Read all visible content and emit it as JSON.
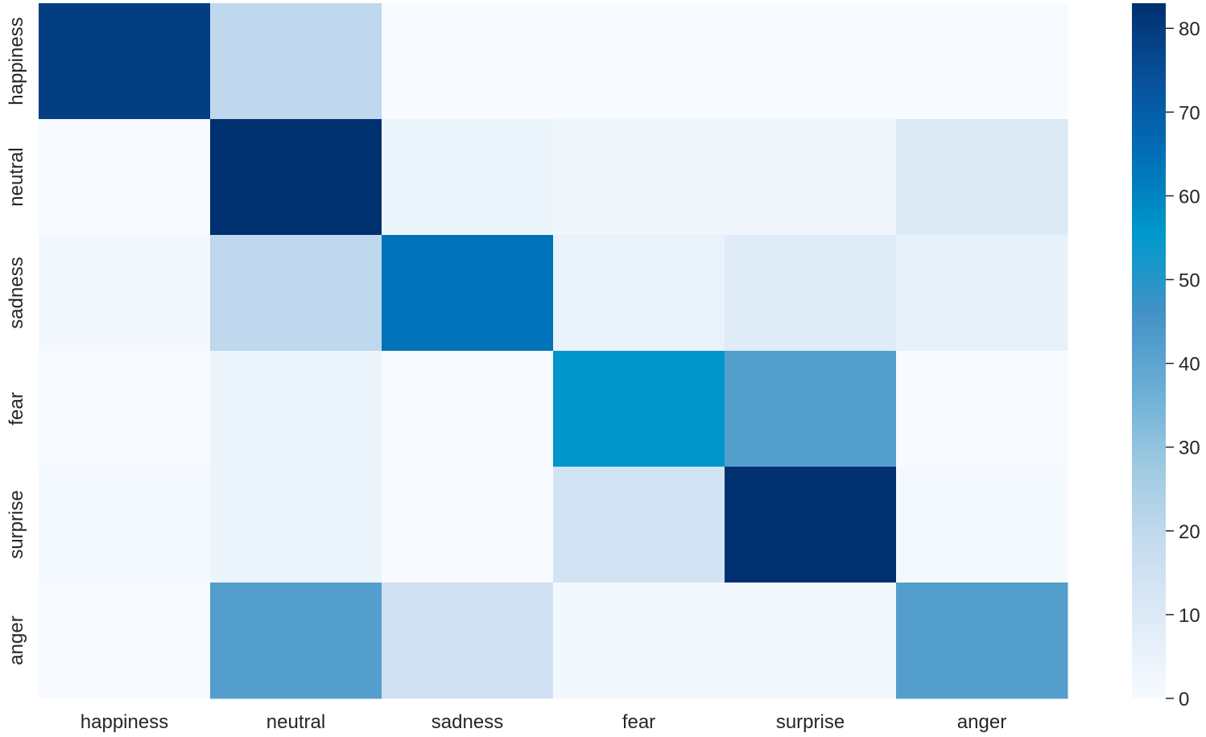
{
  "chart_data": {
    "type": "heatmap",
    "title": "",
    "xlabel": "",
    "ylabel": "",
    "x_categories": [
      "happiness",
      "neutral",
      "sadness",
      "fear",
      "surprise",
      "anger"
    ],
    "y_categories": [
      "happiness",
      "neutral",
      "sadness",
      "fear",
      "surprise",
      "anger"
    ],
    "values": [
      [
        79,
        20,
        0,
        0,
        0,
        0
      ],
      [
        0,
        83,
        4,
        3,
        3,
        10
      ],
      [
        2,
        20,
        64,
        5,
        9,
        6
      ],
      [
        0,
        4,
        0,
        56,
        42,
        0
      ],
      [
        1,
        4,
        0,
        14,
        83,
        1
      ],
      [
        0,
        42,
        15,
        2,
        2,
        42
      ]
    ],
    "colorbar": {
      "min": 0,
      "max": 83,
      "ticks": [
        0,
        10,
        20,
        30,
        40,
        50,
        60,
        70,
        80
      ],
      "colormap": "Blues",
      "stops": [
        "#f7fbff",
        "#deebf7",
        "#c6dbef",
        "#9ecae1",
        "#6baed6",
        "#4292c6",
        "#0099cc",
        "#0070b8",
        "#08519c",
        "#003070"
      ]
    },
    "grid": false
  }
}
